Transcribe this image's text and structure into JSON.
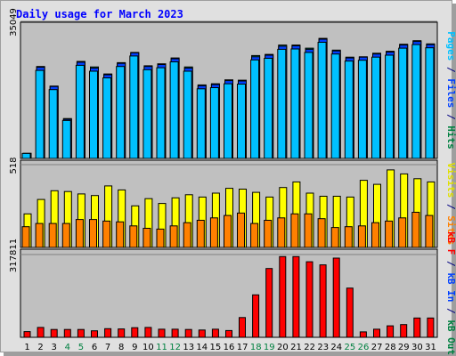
{
  "chart_data": {
    "type": "bar",
    "title": "Daily usage for March 2023",
    "title_color": "#0000ff",
    "plot_background": "#c0c0c0",
    "frame_background": "#e0e0e0",
    "grid": true,
    "x": [
      "1",
      "2",
      "3",
      "4",
      "5",
      "6",
      "7",
      "8",
      "9",
      "10",
      "11",
      "12",
      "13",
      "14",
      "15",
      "16",
      "17",
      "18",
      "19",
      "20",
      "21",
      "22",
      "23",
      "24",
      "25",
      "26",
      "27",
      "28",
      "29",
      "30",
      "31"
    ],
    "x_label_colors": [
      "#000000",
      "#000000",
      "#000000",
      "#008040",
      "#008040",
      "#000000",
      "#000000",
      "#000000",
      "#000000",
      "#000000",
      "#008040",
      "#008040",
      "#000000",
      "#000000",
      "#000000",
      "#000000",
      "#000000",
      "#008040",
      "#008040",
      "#000000",
      "#000000",
      "#000000",
      "#000000",
      "#000000",
      "#008040",
      "#008040",
      "#000000",
      "#000000",
      "#000000",
      "#000000",
      "#000000"
    ],
    "panels": [
      {
        "ytick": "35049",
        "ymax": 35049,
        "label_parts": [
          {
            "text": "Pages",
            "color": "#00c0ff"
          },
          {
            "text": " / ",
            "color": "#000080"
          },
          {
            "text": "Files",
            "color": "#0040ff"
          },
          {
            "text": " / ",
            "color": "#000080"
          },
          {
            "text": "Hits",
            "color": "#008040"
          }
        ],
        "series": [
          {
            "name": "Hits",
            "color": "#00805a",
            "values": [
              3,
              23500,
              18500,
              10200,
              24800,
              23400,
              21600,
              24500,
              27100,
              23700,
              24200,
              25700,
              23400,
              18800,
              19100,
              20100,
              20000,
              26300,
              26600,
              29000,
              29000,
              28200,
              30700,
              27700,
              25900,
              26000,
              26900,
              27400,
              29200,
              30100,
              29300
            ]
          },
          {
            "name": "Files",
            "color": "#0040ff",
            "values": [
              1330,
              23300,
              18400,
              10000,
              24600,
              23100,
              21400,
              24300,
              27000,
              23500,
              24000,
              25500,
              23100,
              18600,
              18900,
              19900,
              19800,
              26000,
              26400,
              28700,
              28800,
              27900,
              30500,
              27500,
              25700,
              25900,
              26700,
              27200,
              29000,
              29900,
              29100
            ]
          },
          {
            "name": "Pages",
            "color": "#00c0ff",
            "values": [
              1280,
              22500,
              17600,
              9700,
              23800,
              22300,
              20600,
              23500,
              26200,
              22700,
              23200,
              24700,
              22300,
              17800,
              18100,
              19100,
              19000,
              25200,
              25600,
              27900,
              28000,
              27100,
              29700,
              26700,
              24900,
              25100,
              25900,
              26400,
              28200,
              29100,
              28300
            ]
          }
        ]
      },
      {
        "ytick": "518",
        "ymax": 518,
        "label_parts": [
          {
            "text": "Visits",
            "color": "#e0e000"
          },
          {
            "text": " / ",
            "color": "#000080"
          },
          {
            "text": "Sites",
            "color": "#ff8000"
          }
        ],
        "series": [
          {
            "name": "Visits",
            "color": "#ffff00",
            "values": [
              210,
              300,
              355,
              350,
              335,
              325,
              385,
              360,
              260,
              305,
              275,
              310,
              330,
              315,
              340,
              370,
              365,
              345,
              315,
              375,
              410,
              340,
              320,
              320,
              315,
              420,
              395,
              485,
              460,
              430,
              410
            ]
          },
          {
            "name": "Sites",
            "color": "#ff8000",
            "values": [
              130,
              150,
              150,
              150,
              175,
              175,
              165,
              160,
              135,
              120,
              115,
              135,
              155,
              170,
              185,
              200,
              215,
              150,
              170,
              185,
              210,
              210,
              180,
              125,
              130,
              135,
              155,
              165,
              185,
              220,
              200
            ]
          }
        ]
      },
      {
        "ytick": "317811",
        "ymax": 317811,
        "label_parts": [
          {
            "text": "kB F",
            "color": "#ff0000"
          },
          {
            "text": " / ",
            "color": "#000080"
          },
          {
            "text": "kB In",
            "color": "#0040ff"
          },
          {
            "text": " / ",
            "color": "#000080"
          },
          {
            "text": "kB Out",
            "color": "#008040"
          }
        ],
        "series": [
          {
            "name": "kB F",
            "color": "#ff0000",
            "values": [
              22000,
              38000,
              30000,
              30000,
              30000,
              25000,
              33000,
              32000,
              37000,
              38000,
              31000,
              31000,
              30000,
              28000,
              31000,
              26000,
              76000,
              163000,
              264000,
              310000,
              310000,
              290000,
              278000,
              304000,
              189000,
              21000,
              31000,
              44000,
              49000,
              74000,
              74000
            ]
          }
        ]
      }
    ]
  }
}
